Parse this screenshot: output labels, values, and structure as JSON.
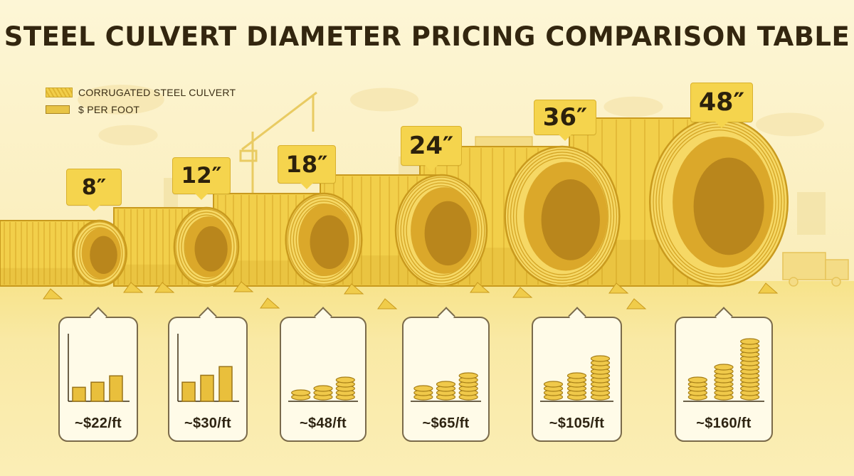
{
  "title": "STEEL CULVERT DIAMETER PRICING COMPARISON TABLE",
  "legend": {
    "items": [
      {
        "label": "CORRUGATED STEEL CULVERT",
        "icon": "corrugated-swatch"
      },
      {
        "label": "$ PER FOOT",
        "icon": "money-swatch"
      }
    ]
  },
  "colors": {
    "pipe": "#f2cf4a",
    "pipe_dark": "#c99a1e",
    "tag": "#f5d44d",
    "bar": "#e9bf3c",
    "coin": "#f0c94a",
    "card_border": "#7a6a4a"
  },
  "chart_data": {
    "type": "bar",
    "title": "STEEL CULVERT DIAMETER PRICING COMPARISON TABLE",
    "categories": [
      "8″",
      "12″",
      "18″",
      "24″",
      "36″",
      "48″"
    ],
    "values": [
      22,
      30,
      48,
      65,
      105,
      160
    ],
    "value_labels": [
      "~$22/ft",
      "~$30/ft",
      "~$48/ft",
      "~$65/ft",
      "~$105/ft",
      "~$160/ft"
    ],
    "icon_style": [
      "bars",
      "bars",
      "coins",
      "coins",
      "coins",
      "coins"
    ],
    "xlabel": "",
    "ylabel": ""
  }
}
